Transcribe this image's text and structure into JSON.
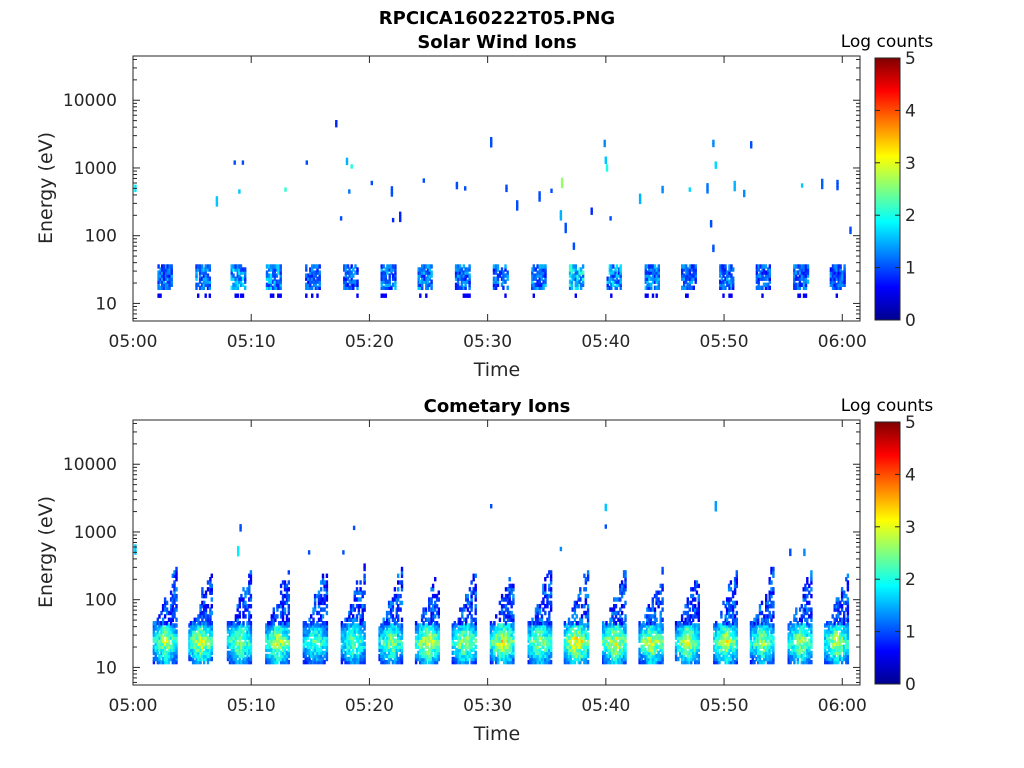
{
  "figure_title": "RPCICA160222T05.PNG",
  "chart_data": [
    {
      "type": "heatmap",
      "title": "Solar Wind Ions",
      "xlabel": "Time",
      "ylabel": "Energy (eV)",
      "x_unit": "minutes after 05:00",
      "xlim": [
        0,
        61.5
      ],
      "ylim": [
        5.5,
        45000
      ],
      "yscale": "log",
      "x_ticks": [
        0,
        10,
        20,
        30,
        40,
        50,
        60
      ],
      "x_tick_labels": [
        "05:00",
        "05:10",
        "05:20",
        "05:30",
        "05:40",
        "05:50",
        "06:00"
      ],
      "y_ticks": [
        10,
        100,
        1000,
        10000
      ],
      "y_tick_labels": [
        "10",
        "100",
        "1000",
        "10000"
      ],
      "colorbar": {
        "label": "Log counts",
        "range": [
          0,
          5
        ],
        "ticks": [
          "0",
          "1",
          "2",
          "3",
          "4",
          "5"
        ],
        "colormap": "jet"
      },
      "bursts_t": [
        2.8,
        6,
        9,
        12,
        15.3,
        18.5,
        21.7,
        24.8,
        28,
        31.2,
        34.4,
        37.6,
        40.8,
        44,
        47.1,
        50.3,
        53.4,
        56.6,
        59.7
      ],
      "bursts_level": [
        1.2,
        1.3,
        1.5,
        1.4,
        1.1,
        1.2,
        1.3,
        1.3,
        1.2,
        1.2,
        1.3,
        1.8,
        1.4,
        1.3,
        1.2,
        1.2,
        1.1,
        1.2,
        1.1
      ],
      "sparse_points": [
        [
          0.2,
          500,
          1.8
        ],
        [
          7.1,
          320,
          1.6
        ],
        [
          8.6,
          1200,
          1
        ],
        [
          9.3,
          1200,
          1
        ],
        [
          9,
          450,
          1.6
        ],
        [
          12.9,
          480,
          2.1
        ],
        [
          14.7,
          1200,
          1
        ],
        [
          17.2,
          4500,
          0.8
        ],
        [
          17.6,
          180,
          1
        ],
        [
          18.1,
          1250,
          1.5
        ],
        [
          18.5,
          1050,
          2
        ],
        [
          18.3,
          450,
          1.2
        ],
        [
          20.2,
          600,
          1
        ],
        [
          22,
          170,
          0.8
        ],
        [
          22.6,
          190,
          0.8
        ],
        [
          21.9,
          450,
          1
        ],
        [
          24.6,
          650,
          1
        ],
        [
          27.4,
          550,
          1
        ],
        [
          28.1,
          500,
          1
        ],
        [
          30.3,
          2400,
          1
        ],
        [
          31.6,
          500,
          1
        ],
        [
          32.5,
          280,
          1
        ],
        [
          34.4,
          380,
          1
        ],
        [
          35.4,
          460,
          1
        ],
        [
          36.3,
          600,
          2.6
        ],
        [
          36.2,
          200,
          1.5
        ],
        [
          36.6,
          130,
          1
        ],
        [
          37.3,
          70,
          1
        ],
        [
          38.8,
          230,
          0.8
        ],
        [
          39.9,
          2300,
          1.3
        ],
        [
          40,
          1300,
          1.6
        ],
        [
          40.1,
          1000,
          2
        ],
        [
          40.4,
          180,
          1
        ],
        [
          42.9,
          350,
          1.5
        ],
        [
          44.8,
          480,
          1.3
        ],
        [
          47.1,
          480,
          1.7
        ],
        [
          48.6,
          500,
          1.2
        ],
        [
          48.9,
          150,
          1
        ],
        [
          49.1,
          2300,
          1.3
        ],
        [
          49.3,
          1100,
          1.7
        ],
        [
          49.1,
          65,
          1
        ],
        [
          50.9,
          540,
          1.5
        ],
        [
          51.7,
          420,
          1.3
        ],
        [
          52.3,
          2200,
          1
        ],
        [
          56.6,
          550,
          1.6
        ],
        [
          58.3,
          580,
          1.1
        ],
        [
          59.6,
          560,
          1
        ],
        [
          60.7,
          120,
          1
        ]
      ]
    },
    {
      "type": "heatmap",
      "title": "Cometary Ions",
      "xlabel": "Time",
      "ylabel": "Energy (eV)",
      "x_unit": "minutes after 05:00",
      "xlim": [
        0,
        61.5
      ],
      "ylim": [
        5.5,
        45000
      ],
      "yscale": "log",
      "x_ticks": [
        0,
        10,
        20,
        30,
        40,
        50,
        60
      ],
      "x_tick_labels": [
        "05:00",
        "05:10",
        "05:20",
        "05:30",
        "05:40",
        "05:50",
        "06:00"
      ],
      "y_ticks": [
        10,
        100,
        1000,
        10000
      ],
      "y_tick_labels": [
        "10",
        "100",
        "1000",
        "10000"
      ],
      "colorbar": {
        "label": "Log counts",
        "range": [
          0,
          5
        ],
        "ticks": [
          "0",
          "1",
          "2",
          "3",
          "4",
          "5"
        ],
        "colormap": "jet"
      },
      "bursts_t": [
        2.8,
        5.8,
        9.1,
        12.3,
        15.5,
        18.7,
        21.9,
        25,
        28.1,
        31.3,
        34.5,
        37.6,
        40.8,
        43.9,
        47,
        50.2,
        53.3,
        56.5,
        59.6
      ],
      "bursts_level": [
        2.4,
        2.6,
        2.4,
        2.6,
        2.1,
        2.2,
        2.3,
        2.7,
        2.5,
        2.7,
        2.5,
        2.9,
        2.7,
        2.6,
        2.6,
        2.6,
        2.4,
        2.5,
        2.5
      ],
      "sparse_points": [
        [
          9.1,
          1150,
          1
        ],
        [
          18.7,
          1150,
          1
        ],
        [
          30.3,
          2400,
          1
        ],
        [
          40,
          2300,
          1.6
        ],
        [
          40,
          1200,
          1
        ],
        [
          49.3,
          2400,
          1.4
        ],
        [
          0.2,
          550,
          1.6
        ],
        [
          8.9,
          520,
          1.8
        ],
        [
          14.9,
          500,
          1
        ],
        [
          17.8,
          500,
          1
        ],
        [
          36.2,
          560,
          1.3
        ],
        [
          55.6,
          500,
          1
        ],
        [
          56.8,
          500,
          1.3
        ]
      ]
    }
  ]
}
